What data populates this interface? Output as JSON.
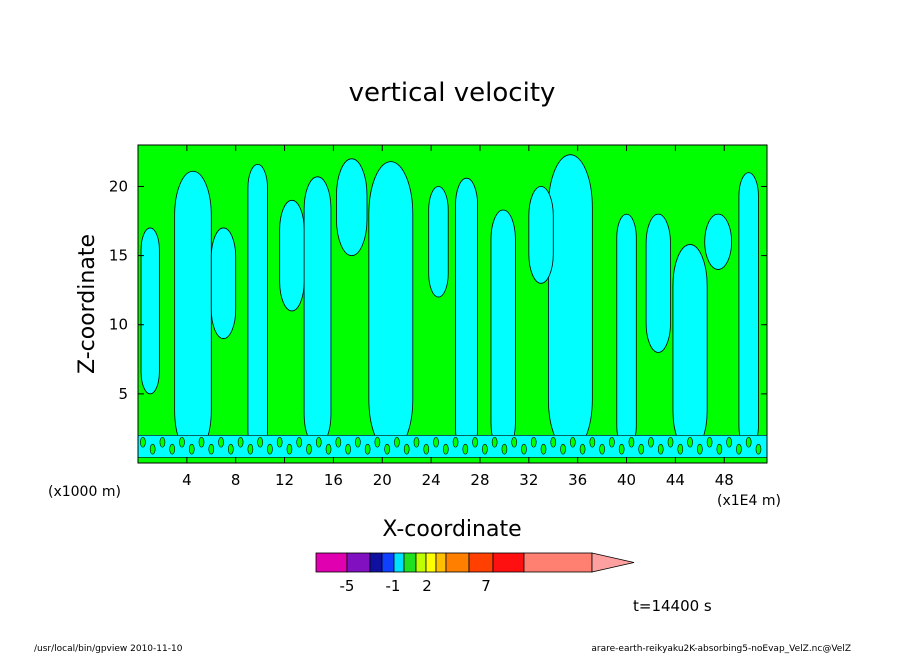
{
  "chart_data": {
    "type": "heatmap",
    "title": "vertical velocity",
    "xlabel": "X-coordinate",
    "ylabel": "Z-coordinate",
    "x_unit_left": "(x1000 m)",
    "x_unit_right": "(x1E4 m)",
    "xlim": [
      0,
      51.5
    ],
    "ylim": [
      0,
      23
    ],
    "x_ticks": [
      4,
      8,
      12,
      16,
      20,
      24,
      28,
      32,
      36,
      40,
      44,
      48
    ],
    "y_ticks": [
      5,
      10,
      15,
      20
    ],
    "series": [
      {
        "values": [
          {
            "x": 4.5,
            "y": 0.6,
            "w": 3.0,
            "h": 20.5
          },
          {
            "x": 9.8,
            "y": 0.6,
            "w": 1.6,
            "h": 21.0
          },
          {
            "x": 14.7,
            "y": 1.2,
            "w": 2.2,
            "h": 19.5
          },
          {
            "x": 20.7,
            "y": 0.8,
            "w": 3.6,
            "h": 21.0
          },
          {
            "x": 26.9,
            "y": 0.6,
            "w": 1.8,
            "h": 20.0
          },
          {
            "x": 29.9,
            "y": 0.8,
            "w": 2.0,
            "h": 17.5
          },
          {
            "x": 35.4,
            "y": 0.8,
            "w": 3.6,
            "h": 21.5
          },
          {
            "x": 40.0,
            "y": 1.0,
            "w": 1.6,
            "h": 17.0
          },
          {
            "x": 45.2,
            "y": 0.8,
            "w": 2.8,
            "h": 15.0
          },
          {
            "x": 50.0,
            "y": 1.0,
            "w": 1.6,
            "h": 20.0
          },
          {
            "x": 1.0,
            "y": 5.0,
            "w": 1.5,
            "h": 12.0
          },
          {
            "x": 7.0,
            "y": 9.0,
            "w": 2.0,
            "h": 8.0
          },
          {
            "x": 12.6,
            "y": 11.0,
            "w": 2.0,
            "h": 8.0
          },
          {
            "x": 17.5,
            "y": 15.0,
            "w": 2.5,
            "h": 7.0
          },
          {
            "x": 24.6,
            "y": 12.0,
            "w": 1.6,
            "h": 8.0
          },
          {
            "x": 33.0,
            "y": 13.0,
            "w": 2.0,
            "h": 7.0
          },
          {
            "x": 42.6,
            "y": 8.0,
            "w": 2.0,
            "h": 10.0
          },
          {
            "x": 47.5,
            "y": 14.0,
            "w": 2.2,
            "h": 4.0
          }
        ]
      }
    ],
    "colorbar": {
      "colors": [
        "#e000b0",
        "#8010c0",
        "#1010a0",
        "#1040ff",
        "#00e0ff",
        "#20e020",
        "#c0ff00",
        "#ffff00",
        "#ffc000",
        "#ff8000",
        "#ff4000",
        "#ff1010",
        "#ff8070",
        "#ffa0a0"
      ],
      "labels": [
        "-5",
        "-1",
        "2",
        "7"
      ],
      "label_values": [
        -5,
        -1,
        2,
        7
      ]
    },
    "time_label": "t=14400 s",
    "field_colors": {
      "positive": "#00ff00",
      "negative": "#00ffff",
      "contour": "#000000"
    }
  },
  "footer": {
    "left": "/usr/local/bin/gpview  2010-11-10",
    "right": "arare-earth-reikyaku2K-absorbing5-noEvap_VelZ.nc@VelZ"
  }
}
